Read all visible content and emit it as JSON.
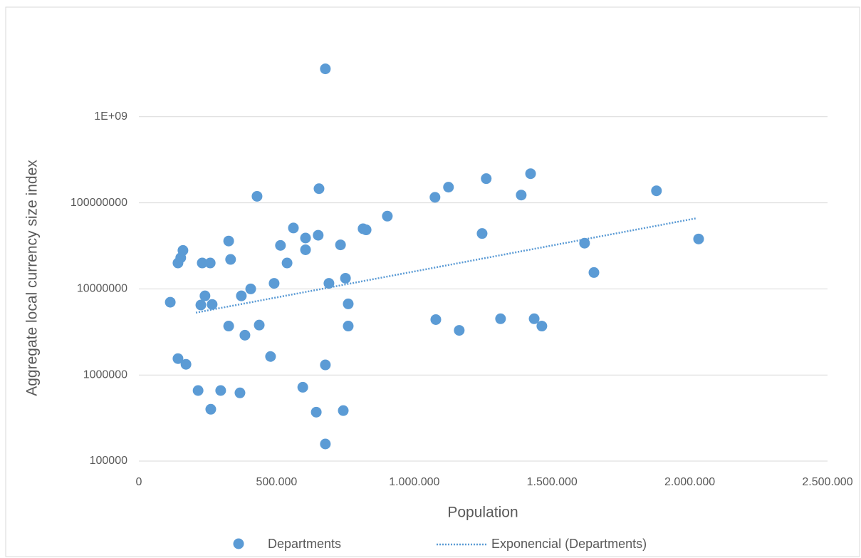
{
  "chart_data": {
    "type": "scatter",
    "x_label": "Population",
    "y_label": "Aggregate local currency size index",
    "xlim": [
      0,
      2500000
    ],
    "xticks": [
      0,
      {
        "value": 500000,
        "label": "500.000"
      },
      {
        "value": 1000000,
        "label": "1.000.000"
      },
      {
        "value": 1500000,
        "label": "1.500.000"
      },
      {
        "value": 2000000,
        "label": "2.000.000"
      },
      {
        "value": 2500000,
        "label": "2.500.000"
      }
    ],
    "ylim": [
      100000,
      10000000000
    ],
    "yticks": [
      100000,
      1000000,
      10000000,
      100000000,
      {
        "value": 1000000000,
        "label": "1E+09"
      }
    ],
    "yscale": "log",
    "grid": true,
    "legend": "bottom",
    "series": [
      {
        "name": "Departments",
        "color": "#5b9bd5",
        "x": [
          114000,
          142000,
          152000,
          160000,
          142000,
          171000,
          215000,
          225000,
          230000,
          240000,
          259000,
          266000,
          261000,
          297000,
          326000,
          326000,
          333000,
          367000,
          372000,
          385000,
          406000,
          429000,
          437000,
          478000,
          491000,
          514000,
          538000,
          561000,
          595000,
          605000,
          605000,
          644000,
          651000,
          654000,
          677000,
          677000,
          677000,
          690000,
          732000,
          742000,
          750000,
          760000,
          760000,
          814000,
          825000,
          902000,
          1075000,
          1078000,
          1124000,
          1163000,
          1246000,
          1261000,
          1313000,
          1388000,
          1422000,
          1435000,
          1463000,
          1618000,
          1652000,
          1879000,
          2032000
        ],
        "values": [
          7000000,
          20000000,
          23000000,
          28000000,
          1550000,
          1330000,
          660000,
          6500000,
          20000000,
          8300000,
          20000000,
          6600000,
          400000,
          660000,
          36000000,
          3700000,
          22000000,
          620000,
          8300000,
          2900000,
          10000000,
          119000000,
          3800000,
          1640000,
          11600000,
          32000000,
          20000000,
          51000000,
          720000,
          39000000,
          28500000,
          370000,
          42000000,
          146000000,
          3600000000,
          1310000,
          158000,
          11600000,
          32500000,
          386000,
          13300000,
          6700000,
          3700000,
          50000000,
          48500000,
          70000000,
          116000000,
          4400000,
          152000000,
          3300000,
          44000000,
          191000000,
          4500000,
          123000000,
          218000000,
          4500000,
          3700000,
          34000000,
          15500000,
          138000000,
          38000000
        ]
      }
    ],
    "trendline": {
      "name": "Exponencial (Departments)",
      "color": "#5b9bd5",
      "x": [
        207000,
        2022000
      ],
      "values": [
        5300000,
        66000000
      ]
    }
  }
}
